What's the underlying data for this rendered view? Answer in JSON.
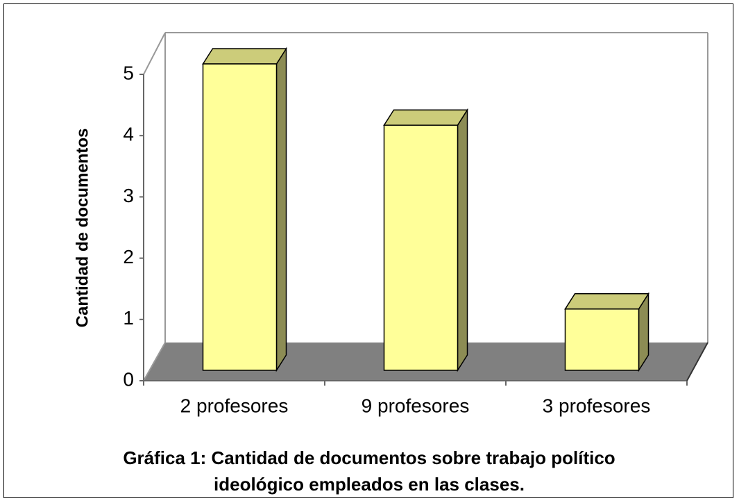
{
  "chart_data": {
    "type": "bar3d",
    "title": "Gráfica 1: Cantidad de documentos sobre trabajo político ideológico empleados en las clases.",
    "y_label": "Cantidad de documentos",
    "categories": [
      "2 profesores",
      "9 profesores",
      "3 profesores"
    ],
    "values": [
      5,
      4,
      1
    ],
    "color": "#ffff99",
    "ylim": [
      0,
      5
    ],
    "yticks": [
      0,
      1,
      2,
      3,
      4,
      5
    ]
  }
}
